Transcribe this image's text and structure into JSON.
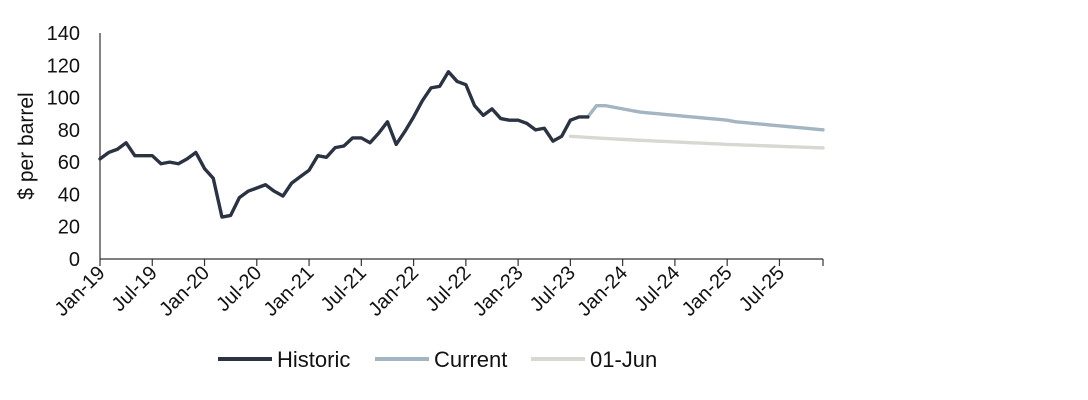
{
  "chart_data": {
    "type": "line",
    "ylabel": "$ per barrel",
    "ylim": [
      0,
      140
    ],
    "yticks": [
      "0",
      "20",
      "40",
      "60",
      "80",
      "100",
      "120",
      "140"
    ],
    "x_start": "Jan-19",
    "x_end": "Dec-25",
    "xticks": [
      "Jan-19",
      "Jul-19",
      "Jan-20",
      "Jul-20",
      "Jan-21",
      "Jul-21",
      "Jan-22",
      "Jul-22",
      "Jan-23",
      "Jul-23",
      "Jan-24",
      "Jul-24",
      "Jan-25",
      "Jul-25"
    ],
    "legend_position": "bottom",
    "grid": false,
    "series": [
      {
        "name": "Historic",
        "color": "#2b3242",
        "x": [
          "Jan-19",
          "Feb-19",
          "Mar-19",
          "Apr-19",
          "May-19",
          "Jun-19",
          "Jul-19",
          "Aug-19",
          "Sep-19",
          "Oct-19",
          "Nov-19",
          "Dec-19",
          "Jan-20",
          "Feb-20",
          "Mar-20",
          "Apr-20",
          "May-20",
          "Jun-20",
          "Jul-20",
          "Aug-20",
          "Sep-20",
          "Oct-20",
          "Nov-20",
          "Dec-20",
          "Jan-21",
          "Feb-21",
          "Mar-21",
          "Apr-21",
          "May-21",
          "Jun-21",
          "Jul-21",
          "Aug-21",
          "Sep-21",
          "Oct-21",
          "Nov-21",
          "Dec-21",
          "Jan-22",
          "Feb-22",
          "Mar-22",
          "Apr-22",
          "May-22",
          "Jun-22",
          "Jul-22",
          "Aug-22",
          "Sep-22",
          "Oct-22",
          "Nov-22",
          "Dec-22",
          "Jan-23",
          "Feb-23",
          "Mar-23",
          "Apr-23",
          "May-23",
          "Jun-23",
          "Jul-23",
          "Aug-23",
          "Sep-23"
        ],
        "values": [
          62,
          66,
          68,
          72,
          64,
          64,
          64,
          59,
          60,
          59,
          62,
          66,
          56,
          50,
          26,
          27,
          38,
          42,
          44,
          46,
          42,
          39,
          47,
          51,
          55,
          64,
          63,
          69,
          70,
          75,
          75,
          72,
          78,
          85,
          71,
          79,
          88,
          98,
          106,
          107,
          116,
          110,
          108,
          95,
          89,
          93,
          87,
          86,
          86,
          84,
          80,
          81,
          73,
          76,
          86,
          88,
          88
        ]
      },
      {
        "name": "Current",
        "color": "#a3b5c2",
        "x": [
          "Sep-23",
          "Oct-23",
          "Nov-23",
          "Dec-23",
          "Jan-24",
          "Feb-24",
          "Mar-24",
          "Apr-24",
          "May-24",
          "Jun-24",
          "Jul-24",
          "Aug-24",
          "Sep-24",
          "Oct-24",
          "Nov-24",
          "Dec-24",
          "Jan-25",
          "Feb-25",
          "Mar-25",
          "Apr-25",
          "May-25",
          "Jun-25",
          "Jul-25",
          "Aug-25",
          "Sep-25",
          "Oct-25",
          "Nov-25",
          "Dec-25"
        ],
        "values": [
          88,
          95,
          95,
          94,
          93,
          92,
          91,
          90.5,
          90,
          89.5,
          89,
          88.5,
          88,
          87.5,
          87,
          86.5,
          86,
          85,
          84.5,
          84,
          83.5,
          83,
          82.5,
          82,
          81.5,
          81,
          80.5,
          80
        ]
      },
      {
        "name": "01-Jun",
        "color": "#d8d8d2",
        "x": [
          "Jul-23",
          "Aug-23",
          "Sep-23",
          "Oct-23",
          "Nov-23",
          "Dec-23",
          "Jan-24",
          "Feb-24",
          "Mar-24",
          "Apr-24",
          "May-24",
          "Jun-24",
          "Jul-24",
          "Aug-24",
          "Sep-24",
          "Oct-24",
          "Nov-24",
          "Dec-24",
          "Jan-25",
          "Feb-25",
          "Mar-25",
          "Apr-25",
          "May-25",
          "Jun-25",
          "Jul-25",
          "Aug-25",
          "Sep-25",
          "Oct-25",
          "Nov-25",
          "Dec-25"
        ],
        "values": [
          76,
          75.7,
          75.3,
          75,
          74.7,
          74.4,
          74.1,
          73.8,
          73.5,
          73.3,
          73,
          72.8,
          72.5,
          72.3,
          72,
          71.8,
          71.5,
          71.3,
          71,
          70.8,
          70.6,
          70.4,
          70.2,
          70,
          69.8,
          69.6,
          69.4,
          69.2,
          69,
          68.8
        ]
      }
    ]
  }
}
